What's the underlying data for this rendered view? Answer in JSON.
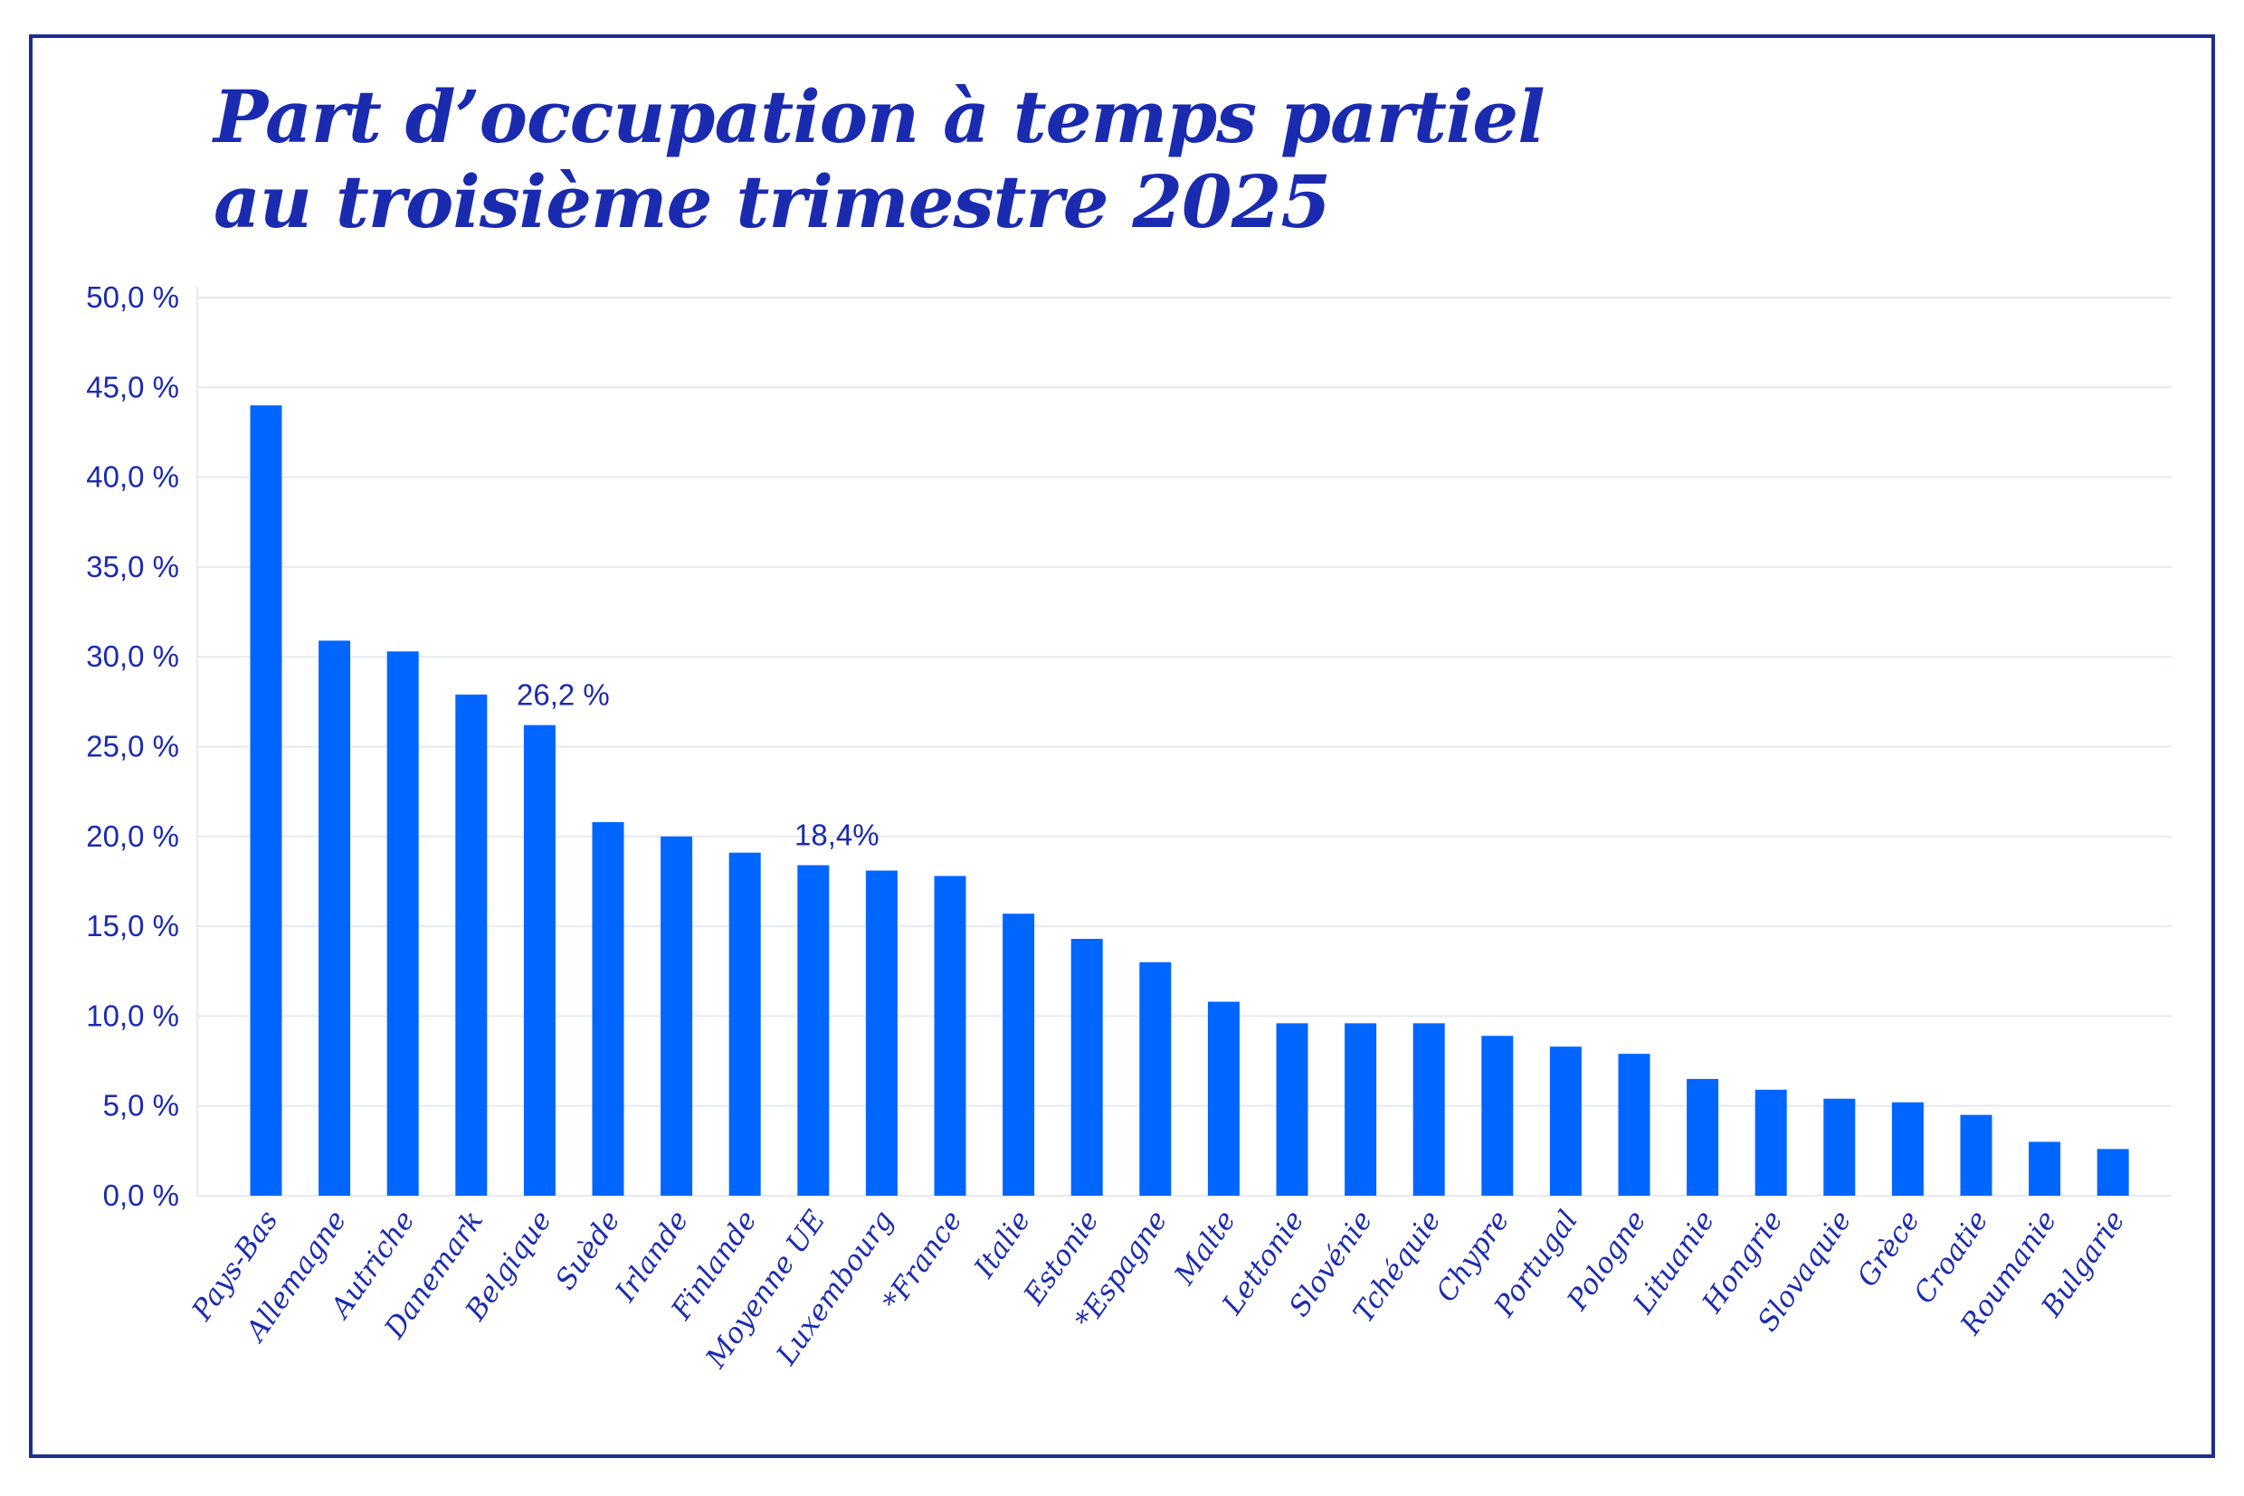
{
  "colors": {
    "bar": "#0066ff",
    "text": "#1a2bb0",
    "frame": "#1e2d8f",
    "grid": "#e6e9f0"
  },
  "chart_data": {
    "type": "bar",
    "title_lines": [
      "Part d’occupation à temps partiel",
      "au troisième trimestre 2025"
    ],
    "xlabel": "",
    "ylabel": "",
    "ylim": [
      0,
      50
    ],
    "y_ticks": [
      "0,0 %",
      "5,0 %",
      "10,0 %",
      "15,0 %",
      "20,0 %",
      "25,0 %",
      "30,0 %",
      "35,0 %",
      "40,0 %",
      "45,0 %",
      "50,0 %"
    ],
    "grid": true,
    "legend": "none",
    "categories": [
      "Pays-Bas",
      "Allemagne",
      "Autriche",
      "Danemark",
      "Belgique",
      "Suède",
      "Irlande",
      "Finlande",
      "Moyenne UE",
      "Luxembourg",
      "*France",
      "Italie",
      "Estonie",
      "*Espagne",
      "Malte",
      "Lettonie",
      "Slovénie",
      "Tchéquie",
      "Chypre",
      "Portugal",
      "Pologne",
      "Lituanie",
      "Hongrie",
      "Slovaquie",
      "Grèce",
      "Croatie",
      "Roumanie",
      "Bulgarie"
    ],
    "values": [
      44.0,
      30.9,
      30.3,
      27.9,
      26.2,
      20.8,
      20.0,
      19.1,
      18.4,
      18.1,
      17.8,
      15.7,
      14.3,
      13.0,
      10.8,
      9.6,
      9.6,
      9.6,
      8.9,
      8.3,
      7.9,
      6.5,
      5.9,
      5.4,
      5.2,
      4.5,
      3.0,
      2.6
    ],
    "data_labels": [
      {
        "category": "Belgique",
        "text": "26,2 %"
      },
      {
        "category": "Moyenne UE",
        "text": "18,4%"
      }
    ]
  }
}
